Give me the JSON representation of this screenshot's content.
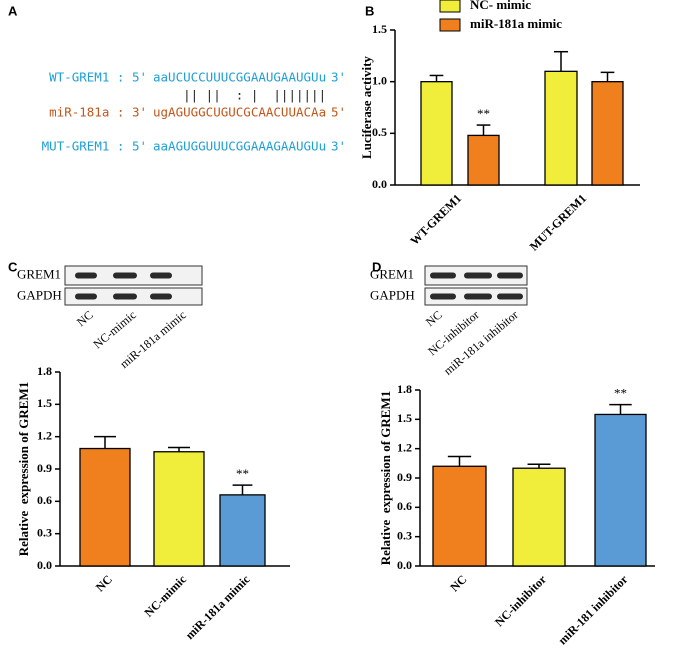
{
  "panel_labels": [
    "A",
    "B",
    "C",
    "D"
  ],
  "alignment": {
    "lines": [
      {
        "prefix": "WT-GREM1 : 5'",
        "sequence": "aaUCUCCUUUCGGAAUGAAUGUu",
        "suffix": "3'",
        "color": "#1e9fd6"
      },
      {
        "pairing": "    || ||  : |  |||||||"
      },
      {
        "prefix": "miR-181a : 3'",
        "sequence": "ugAGUGGCUGUCGCAACUUACAa",
        "suffix": "5'",
        "color": "#c0571a"
      },
      {
        "prefix": "MUT-GREM1 : 5'",
        "sequence": "aaAGUGGUUUCGGAAAGAAUGUu",
        "suffix": "3'",
        "color": "#1e9fd6"
      }
    ]
  },
  "blots": [
    {
      "rows": [
        "GREM1",
        "GAPDH"
      ],
      "lanes": [
        "NC",
        "NC-mimic",
        "miR-181a mimic"
      ]
    },
    {
      "rows": [
        "GREM1",
        "GAPDH"
      ],
      "lanes": [
        "NC",
        "NC-inhibitor",
        "miR-181a inhibitor"
      ]
    }
  ],
  "chart_data": [
    {
      "type": "bar",
      "y_label": "Luciferase activity",
      "categories": [
        "WT-GREM1",
        "MUT-GREM1"
      ],
      "series": [
        {
          "name": "NC- mimic",
          "color": "#f0ee3a",
          "values": [
            1.0,
            1.1
          ],
          "errors": [
            0.06,
            0.19
          ]
        },
        {
          "name": "miR-181a mimic",
          "color": "#f07f1e",
          "values": [
            0.48,
            1.0
          ],
          "errors": [
            0.1,
            0.09
          ]
        }
      ],
      "ylim": [
        0,
        1.5
      ],
      "yticks": [
        {
          "value": 0,
          "label": "0.0"
        },
        0.5,
        {
          "value": 1,
          "label": "1.0"
        },
        1.5
      ],
      "annotations": [
        {
          "text": "**",
          "category": 0,
          "series": 1
        }
      ]
    },
    {
      "type": "bar",
      "y_label": "Relative  expression of GREM1",
      "categories": [
        "NC",
        "NC-mimic",
        "miR-181a mimic"
      ],
      "values": [
        1.09,
        1.06,
        0.66
      ],
      "errors": [
        0.11,
        0.04,
        0.09
      ],
      "colors": [
        "#f07f1e",
        "#f0ee3a",
        "#5b9bd5"
      ],
      "ylim": [
        0,
        1.8
      ],
      "yticks": [
        {
          "value": 0,
          "label": "0.0"
        },
        0.3,
        0.6,
        0.9,
        1.2,
        1.5,
        1.8
      ],
      "annotations": [
        {
          "text": "**",
          "category": 2
        }
      ]
    },
    {
      "type": "bar",
      "y_label": "Relative  expression of GREM1",
      "categories": [
        "NC",
        "NC-inhibitor",
        "miR-181 inhibitor"
      ],
      "values": [
        1.02,
        1.0,
        1.55
      ],
      "errors": [
        0.1,
        0.04,
        0.1
      ],
      "colors": [
        "#f07f1e",
        "#f0ee3a",
        "#5b9bd5"
      ],
      "ylim": [
        0,
        1.8
      ],
      "yticks": [
        {
          "value": 0,
          "label": "0.0"
        },
        0.3,
        0.6,
        0.9,
        1.2,
        1.5,
        1.8
      ],
      "annotations": [
        {
          "text": "**",
          "category": 2
        }
      ]
    }
  ]
}
